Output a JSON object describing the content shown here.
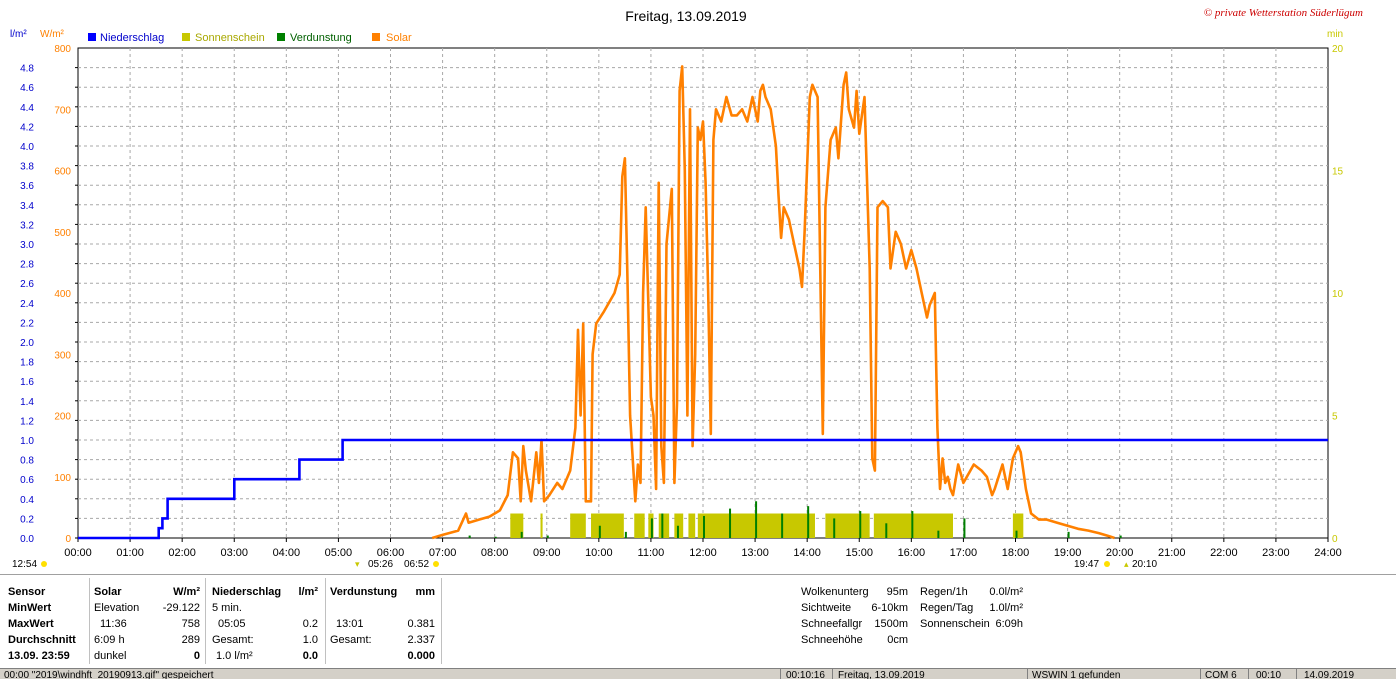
{
  "title": "Freitag, 13.09.2019",
  "copyright": "© private Wetterstation Süderlügum",
  "units": {
    "left_a": "l/m²",
    "left_b": "W/m²",
    "right": "min"
  },
  "legend": [
    {
      "label": "Niederschlag",
      "color": "#0000ff"
    },
    {
      "label": "Sonnenschein",
      "color": "#c8c800"
    },
    {
      "label": "Verdunstung",
      "color": "#008000"
    },
    {
      "label": "Solar",
      "color": "#ff8000"
    }
  ],
  "x_ticks": [
    "00:00",
    "01:00",
    "02:00",
    "03:00",
    "04:00",
    "05:00",
    "06:00",
    "07:00",
    "08:00",
    "09:00",
    "10:00",
    "11:00",
    "12:00",
    "13:00",
    "14:00",
    "15:00",
    "16:00",
    "17:00",
    "18:00",
    "19:00",
    "20:00",
    "21:00",
    "22:00",
    "23:00",
    "24:00"
  ],
  "markers": {
    "moon_left": "12:54",
    "sunrise": "05:26",
    "dawn": "06:52",
    "dusk": "19:47",
    "sunset": "20:10"
  },
  "chart_data": {
    "type": "line",
    "x_unit": "hour of day",
    "xlim": [
      0,
      24
    ],
    "axes": {
      "left_precip": {
        "label": "l/m²",
        "ylim": [
          0,
          5
        ],
        "ticks": [
          "0.0",
          "0.2",
          "0.4",
          "0.6",
          "0.8",
          "1.0",
          "1.2",
          "1.4",
          "1.6",
          "1.8",
          "2.0",
          "2.2",
          "2.4",
          "2.6",
          "2.8",
          "3.0",
          "3.2",
          "3.4",
          "3.6",
          "3.8",
          "4.0",
          "4.2",
          "4.4",
          "4.6",
          "4.8"
        ]
      },
      "left_solar": {
        "label": "W/m²",
        "ylim": [
          0,
          800
        ],
        "ticks": [
          "0",
          "100",
          "200",
          "300",
          "400",
          "500",
          "600",
          "700",
          "800"
        ]
      },
      "right_minutes": {
        "label": "min",
        "ylim": [
          0,
          20
        ],
        "ticks": [
          "0",
          "5",
          "10",
          "15",
          "20"
        ]
      }
    },
    "grid": true,
    "legend_position": "top-left",
    "series": [
      {
        "name": "Niederschlag",
        "axis": "left_precip",
        "color": "#0000ff",
        "step": true,
        "points": [
          [
            0,
            0
          ],
          [
            1.55,
            0
          ],
          [
            1.55,
            0.1
          ],
          [
            1.62,
            0.1
          ],
          [
            1.62,
            0.2
          ],
          [
            1.72,
            0.2
          ],
          [
            1.72,
            0.4
          ],
          [
            3.0,
            0.4
          ],
          [
            3.0,
            0.6
          ],
          [
            4.25,
            0.6
          ],
          [
            4.25,
            0.8
          ],
          [
            5.08,
            0.8
          ],
          [
            5.08,
            1.0
          ],
          [
            24,
            1.0
          ]
        ]
      },
      {
        "name": "Solar",
        "axis": "left_solar",
        "color": "#ff8000",
        "points": [
          [
            6.8,
            0
          ],
          [
            7.0,
            5
          ],
          [
            7.3,
            12
          ],
          [
            7.45,
            40
          ],
          [
            7.5,
            25
          ],
          [
            7.7,
            30
          ],
          [
            7.9,
            35
          ],
          [
            8.1,
            45
          ],
          [
            8.25,
            70
          ],
          [
            8.35,
            140
          ],
          [
            8.45,
            130
          ],
          [
            8.5,
            60
          ],
          [
            8.55,
            150
          ],
          [
            8.6,
            110
          ],
          [
            8.7,
            60
          ],
          [
            8.8,
            140
          ],
          [
            8.85,
            90
          ],
          [
            8.9,
            160
          ],
          [
            8.95,
            60
          ],
          [
            9.05,
            70
          ],
          [
            9.2,
            90
          ],
          [
            9.3,
            80
          ],
          [
            9.45,
            110
          ],
          [
            9.55,
            180
          ],
          [
            9.6,
            340
          ],
          [
            9.65,
            200
          ],
          [
            9.7,
            350
          ],
          [
            9.75,
            60
          ],
          [
            9.85,
            60
          ],
          [
            9.88,
            300
          ],
          [
            9.95,
            350
          ],
          [
            10.1,
            370
          ],
          [
            10.3,
            400
          ],
          [
            10.4,
            430
          ],
          [
            10.45,
            590
          ],
          [
            10.5,
            620
          ],
          [
            10.55,
            420
          ],
          [
            10.6,
            200
          ],
          [
            10.7,
            60
          ],
          [
            10.75,
            120
          ],
          [
            10.8,
            90
          ],
          [
            10.85,
            400
          ],
          [
            10.9,
            540
          ],
          [
            11.0,
            230
          ],
          [
            11.05,
            200
          ],
          [
            11.1,
            80
          ],
          [
            11.15,
            580
          ],
          [
            11.2,
            150
          ],
          [
            11.25,
            90
          ],
          [
            11.3,
            480
          ],
          [
            11.4,
            570
          ],
          [
            11.45,
            90
          ],
          [
            11.5,
            220
          ],
          [
            11.55,
            730
          ],
          [
            11.6,
            770
          ],
          [
            11.65,
            600
          ],
          [
            11.7,
            200
          ],
          [
            11.75,
            700
          ],
          [
            11.8,
            150
          ],
          [
            11.85,
            300
          ],
          [
            11.9,
            670
          ],
          [
            11.95,
            650
          ],
          [
            12.0,
            680
          ],
          [
            12.05,
            580
          ],
          [
            12.1,
            400
          ],
          [
            12.15,
            170
          ],
          [
            12.2,
            650
          ],
          [
            12.25,
            700
          ],
          [
            12.35,
            680
          ],
          [
            12.45,
            720
          ],
          [
            12.55,
            690
          ],
          [
            12.65,
            690
          ],
          [
            12.75,
            700
          ],
          [
            12.85,
            680
          ],
          [
            12.95,
            720
          ],
          [
            13.05,
            680
          ],
          [
            13.1,
            730
          ],
          [
            13.15,
            740
          ],
          [
            13.2,
            720
          ],
          [
            13.3,
            700
          ],
          [
            13.4,
            640
          ],
          [
            13.45,
            560
          ],
          [
            13.5,
            490
          ],
          [
            13.55,
            540
          ],
          [
            13.65,
            520
          ],
          [
            13.75,
            480
          ],
          [
            13.85,
            440
          ],
          [
            13.9,
            410
          ],
          [
            13.95,
            500
          ],
          [
            14.05,
            720
          ],
          [
            14.1,
            740
          ],
          [
            14.2,
            720
          ],
          [
            14.3,
            170
          ],
          [
            14.35,
            540
          ],
          [
            14.45,
            650
          ],
          [
            14.55,
            670
          ],
          [
            14.6,
            620
          ],
          [
            14.7,
            740
          ],
          [
            14.75,
            760
          ],
          [
            14.8,
            700
          ],
          [
            14.9,
            670
          ],
          [
            14.95,
            730
          ],
          [
            15.0,
            660
          ],
          [
            15.05,
            690
          ],
          [
            15.1,
            720
          ],
          [
            15.2,
            440
          ],
          [
            15.25,
            130
          ],
          [
            15.3,
            110
          ],
          [
            15.35,
            540
          ],
          [
            15.45,
            550
          ],
          [
            15.55,
            540
          ],
          [
            15.6,
            440
          ],
          [
            15.7,
            500
          ],
          [
            15.8,
            480
          ],
          [
            15.9,
            440
          ],
          [
            16.0,
            470
          ],
          [
            16.1,
            440
          ],
          [
            16.2,
            400
          ],
          [
            16.3,
            360
          ],
          [
            16.35,
            380
          ],
          [
            16.45,
            400
          ],
          [
            16.5,
            180
          ],
          [
            16.55,
            80
          ],
          [
            16.6,
            130
          ],
          [
            16.65,
            90
          ],
          [
            16.7,
            100
          ],
          [
            16.75,
            80
          ],
          [
            16.8,
            70
          ],
          [
            16.9,
            120
          ],
          [
            17.0,
            90
          ],
          [
            17.2,
            120
          ],
          [
            17.35,
            110
          ],
          [
            17.45,
            100
          ],
          [
            17.55,
            70
          ],
          [
            17.6,
            80
          ],
          [
            17.75,
            120
          ],
          [
            17.85,
            80
          ],
          [
            17.95,
            130
          ],
          [
            18.05,
            150
          ],
          [
            18.1,
            140
          ],
          [
            18.2,
            80
          ],
          [
            18.3,
            40
          ],
          [
            18.45,
            30
          ],
          [
            18.6,
            30
          ],
          [
            18.8,
            25
          ],
          [
            19.0,
            20
          ],
          [
            19.2,
            15
          ],
          [
            19.4,
            12
          ],
          [
            19.6,
            8
          ],
          [
            19.8,
            3
          ],
          [
            19.9,
            0
          ]
        ]
      },
      {
        "name": "Sonnenschein",
        "axis": "right_minutes",
        "color": "#c8c800",
        "type": "bar",
        "segments": [
          [
            8.3,
            8.55,
            1.0
          ],
          [
            8.88,
            8.92,
            1.0
          ],
          [
            9.45,
            9.75,
            1.0
          ],
          [
            9.85,
            10.48,
            1.0
          ],
          [
            10.68,
            10.88,
            1.0
          ],
          [
            10.95,
            11.05,
            1.0
          ],
          [
            11.15,
            11.35,
            1.0
          ],
          [
            11.45,
            11.62,
            1.0
          ],
          [
            11.72,
            11.85,
            1.0
          ],
          [
            11.9,
            14.15,
            1.0
          ],
          [
            14.35,
            15.2,
            1.0
          ],
          [
            15.28,
            16.8,
            1.0
          ],
          [
            17.95,
            18.15,
            1.0
          ]
        ]
      },
      {
        "name": "Verdunstung",
        "axis": "right_minutes",
        "color": "#008000",
        "type": "bar",
        "segments": [
          [
            7.5,
            7.54,
            0.1
          ],
          [
            8.0,
            8.03,
            0.05
          ],
          [
            8.5,
            8.53,
            0.25
          ],
          [
            9.0,
            9.03,
            0.1
          ],
          [
            10.0,
            10.03,
            0.5
          ],
          [
            10.5,
            10.53,
            0.25
          ],
          [
            11.0,
            11.03,
            0.8
          ],
          [
            11.2,
            11.23,
            1.0
          ],
          [
            11.5,
            11.53,
            0.5
          ],
          [
            12.0,
            12.03,
            0.9
          ],
          [
            12.5,
            12.53,
            1.2
          ],
          [
            13.0,
            13.03,
            1.5
          ],
          [
            13.5,
            13.53,
            1.0
          ],
          [
            14.0,
            14.03,
            1.3
          ],
          [
            14.5,
            14.53,
            0.8
          ],
          [
            15.0,
            15.03,
            1.1
          ],
          [
            15.5,
            15.53,
            0.6
          ],
          [
            16.0,
            16.03,
            1.1
          ],
          [
            16.5,
            16.53,
            0.3
          ],
          [
            17.0,
            17.03,
            0.8
          ],
          [
            18.0,
            18.03,
            0.3
          ],
          [
            19.0,
            19.03,
            0.25
          ],
          [
            20.0,
            20.03,
            0.1
          ]
        ]
      }
    ]
  },
  "table": {
    "col1": {
      "h": "Sensor",
      "r1": "MinWert",
      "r2": "MaxWert",
      "r3": "Durchschnitt",
      "r4": "13.09.  23:59"
    },
    "solar": {
      "h1": "Solar",
      "h2": "W/m²",
      "r1a": "Elevation",
      "r1b": "-29.122",
      "r2a": "11:36",
      "r2b": "758",
      "r3a": "6:09 h",
      "r3b": "289",
      "r4a": "dunkel",
      "r4b": "0"
    },
    "precip": {
      "h1": "Niederschlag",
      "h2": "l/m²",
      "r1a": "5 min.",
      "r1b": "",
      "r2a": "05:05",
      "r2b": "0.2",
      "r3a": "Gesamt:",
      "r3b": "1.0",
      "r4a": "1.0 l/m²",
      "r4b": "0.0"
    },
    "evap": {
      "h1": "Verdunstung",
      "h2": "mm",
      "r1a": "",
      "r1b": "",
      "r2a": "13:01",
      "r2b": "0.381",
      "r3a": "Gesamt:",
      "r3b": "2.337",
      "r4a": "",
      "r4b": "0.000"
    },
    "weather": {
      "cloud_label": "Wolkenunterg",
      "cloud_val": "95m",
      "vis_label": "Sichtweite",
      "vis_val": "6-10km",
      "snowfall_label": "Schneefallgr",
      "snowfall_val": "1500m",
      "snowh_label": "Schneehöhe",
      "snowh_val": "0cm"
    },
    "rain": {
      "r1_label": "Regen/1h",
      "r1_val": "0.0l/m²",
      "r2_label": "Regen/Tag",
      "r2_val": "1.0l/m²",
      "r3_label": "Sonnenschein",
      "r3_val": "6:09h"
    }
  },
  "status": {
    "s1": "00:00  \"2019\\windhft_20190913.gif\"  gespeichert",
    "s2": "00:10:16",
    "s3": "Freitag, 13.09.2019",
    "s4": "WSWIN 1 gefunden",
    "s5": "COM 6",
    "s6": "00:10",
    "s7": "14.09.2019"
  }
}
